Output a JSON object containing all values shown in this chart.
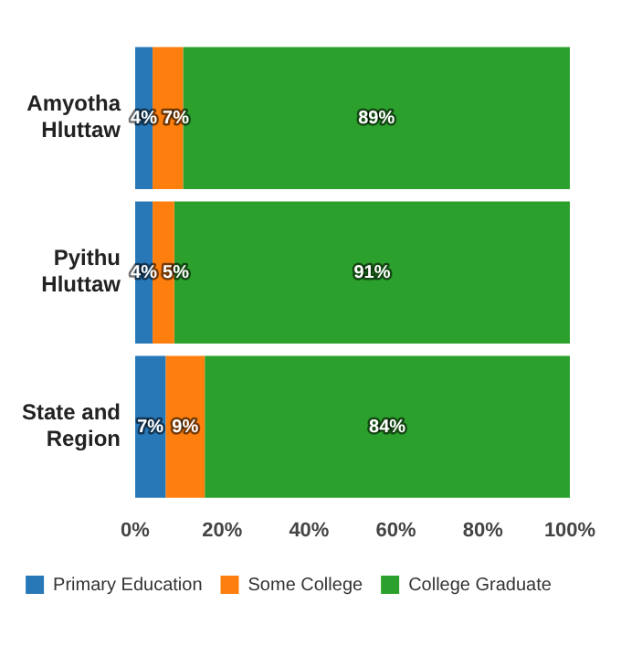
{
  "chart_data": {
    "type": "bar",
    "orientation": "horizontal",
    "stacked": true,
    "categories": [
      "Amyotha Hluttaw",
      "Pyithu Hluttaw",
      "State and Region"
    ],
    "series": [
      {
        "name": "Primary Education",
        "color": "#2878b8",
        "values": [
          4,
          4,
          7
        ],
        "value_labels": [
          "4%",
          "4%",
          "7%"
        ]
      },
      {
        "name": "Some College",
        "color": "#ff7f0e",
        "values": [
          7,
          5,
          9
        ],
        "value_labels": [
          "7%",
          "5%",
          "9%"
        ]
      },
      {
        "name": "College Graduate",
        "color": "#2ca02c",
        "values": [
          89,
          91,
          84
        ],
        "value_labels": [
          "89%",
          "91%",
          "84%"
        ]
      }
    ],
    "xlim": [
      0,
      100
    ],
    "xticks": [
      {
        "value": 0,
        "label": "0%"
      },
      {
        "value": 20,
        "label": "20%"
      },
      {
        "value": 40,
        "label": "40%"
      },
      {
        "value": 60,
        "label": "60%"
      },
      {
        "value": 80,
        "label": "80%"
      },
      {
        "value": 100,
        "label": "100%"
      }
    ],
    "legend": "bottom",
    "grid": false
  }
}
